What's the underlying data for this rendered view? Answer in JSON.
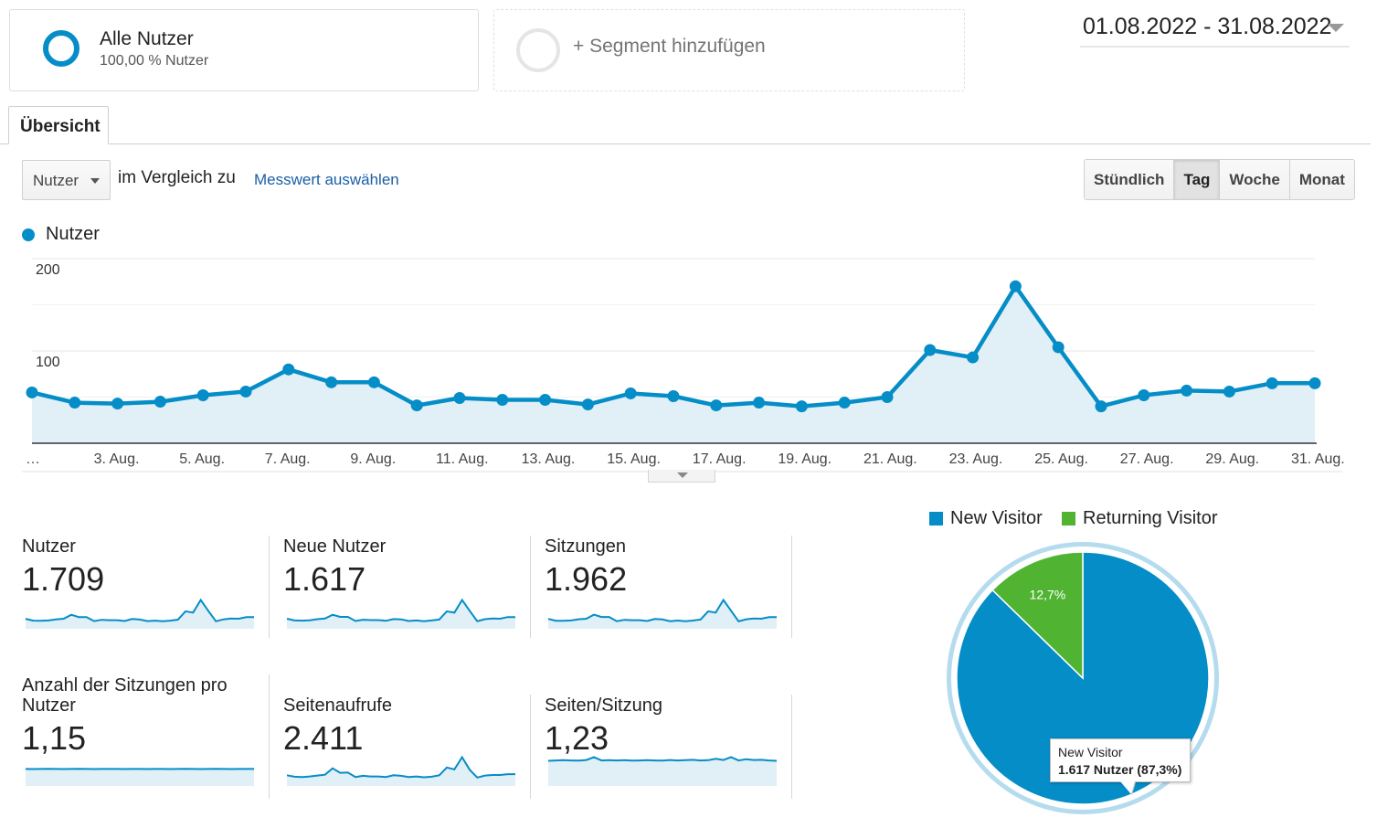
{
  "segments": {
    "active": {
      "title": "Alle Nutzer",
      "subtitle": "100,00 % Nutzer"
    },
    "add_label": "+ Segment hinzufügen"
  },
  "date_range": "01.08.2022 - 31.08.2022",
  "tabs": [
    {
      "label": "Übersicht",
      "active": true
    }
  ],
  "metric_selector": {
    "value": "Nutzer",
    "compare_text": "im Vergleich zu",
    "select_metric_link": "Messwert auswählen"
  },
  "period_buttons": [
    {
      "label": "Stündlich",
      "active": false
    },
    {
      "label": "Tag",
      "active": true
    },
    {
      "label": "Woche",
      "active": false
    },
    {
      "label": "Monat",
      "active": false
    }
  ],
  "colors": {
    "series": "#058dc7",
    "area": "#e1eff7",
    "returning": "#50b432",
    "pie_ring": "#b4dcee"
  },
  "chart_data": [
    {
      "type": "area",
      "legend": [
        "Nutzer"
      ],
      "x_tick_labels": [
        "…",
        "3. Aug.",
        "5. Aug.",
        "7. Aug.",
        "9. Aug.",
        "11. Aug.",
        "13. Aug.",
        "15. Aug.",
        "17. Aug.",
        "19. Aug.",
        "21. Aug.",
        "23. Aug.",
        "25. Aug.",
        "27. Aug.",
        "29. Aug.",
        "31. Aug."
      ],
      "y_tick_labels": [
        "200",
        "100"
      ],
      "ylim": [
        0,
        200
      ],
      "x": [
        1,
        2,
        3,
        4,
        5,
        6,
        7,
        8,
        9,
        10,
        11,
        12,
        13,
        14,
        15,
        16,
        17,
        18,
        19,
        20,
        21,
        22,
        23,
        24,
        25,
        26,
        27,
        28,
        29,
        30,
        31
      ],
      "series": [
        {
          "name": "Nutzer",
          "values": [
            55,
            44,
            43,
            45,
            52,
            56,
            80,
            66,
            66,
            41,
            49,
            47,
            47,
            42,
            54,
            51,
            41,
            44,
            40,
            44,
            50,
            101,
            93,
            170,
            104,
            40,
            52,
            57,
            56,
            65,
            65
          ]
        }
      ]
    },
    {
      "type": "pie",
      "legend": [
        "New Visitor",
        "Returning Visitor"
      ],
      "categories": [
        "New Visitor",
        "Returning Visitor"
      ],
      "values": [
        87.3,
        12.7
      ],
      "labels": [
        "",
        "12,7%"
      ],
      "tooltip": {
        "title": "New Visitor",
        "value": "1.617 Nutzer (87,3%)"
      }
    }
  ],
  "scorecards": [
    {
      "label": "Nutzer",
      "value": "1.709",
      "spark": [
        55,
        44,
        43,
        45,
        52,
        56,
        80,
        66,
        66,
        41,
        49,
        47,
        47,
        42,
        54,
        51,
        41,
        44,
        40,
        44,
        50,
        101,
        93,
        170,
        104,
        40,
        52,
        57,
        56,
        65,
        65
      ]
    },
    {
      "label": "Neue Nutzer",
      "value": "1.617",
      "spark": [
        52,
        42,
        41,
        43,
        49,
        53,
        74,
        62,
        62,
        39,
        46,
        44,
        44,
        40,
        50,
        48,
        39,
        42,
        38,
        42,
        47,
        94,
        86,
        158,
        97,
        38,
        49,
        53,
        52,
        61,
        61
      ]
    },
    {
      "label": "Sitzungen",
      "value": "1.962",
      "spark": [
        63,
        50,
        49,
        52,
        60,
        64,
        92,
        76,
        76,
        47,
        56,
        54,
        54,
        48,
        62,
        59,
        47,
        51,
        46,
        51,
        58,
        116,
        107,
        195,
        120,
        46,
        60,
        66,
        64,
        75,
        75
      ]
    },
    {
      "label": "Anzahl der Sitzungen pro Nutzer",
      "value": "1,15",
      "spark": [
        1.15,
        1.14,
        1.15,
        1.16,
        1.15,
        1.14,
        1.15,
        1.16,
        1.15,
        1.14,
        1.15,
        1.15,
        1.15,
        1.14,
        1.15,
        1.15,
        1.14,
        1.15,
        1.15,
        1.14,
        1.15,
        1.16,
        1.15,
        1.14,
        1.15,
        1.16,
        1.15,
        1.14,
        1.15,
        1.15,
        1.15
      ]
    },
    {
      "label": "Seitenaufrufe",
      "value": "2.411",
      "spark": [
        70,
        60,
        58,
        62,
        68,
        74,
        120,
        88,
        90,
        58,
        66,
        62,
        62,
        58,
        70,
        66,
        58,
        62,
        56,
        60,
        70,
        126,
        112,
        200,
        110,
        54,
        68,
        72,
        72,
        78,
        78
      ]
    },
    {
      "label": "Seiten/Sitzung",
      "value": "1,23",
      "spark": [
        1.2,
        1.22,
        1.23,
        1.22,
        1.21,
        1.24,
        1.38,
        1.22,
        1.23,
        1.22,
        1.23,
        1.21,
        1.22,
        1.23,
        1.22,
        1.21,
        1.24,
        1.22,
        1.23,
        1.25,
        1.22,
        1.23,
        1.3,
        1.24,
        1.38,
        1.22,
        1.28,
        1.24,
        1.25,
        1.22,
        1.2
      ]
    }
  ]
}
